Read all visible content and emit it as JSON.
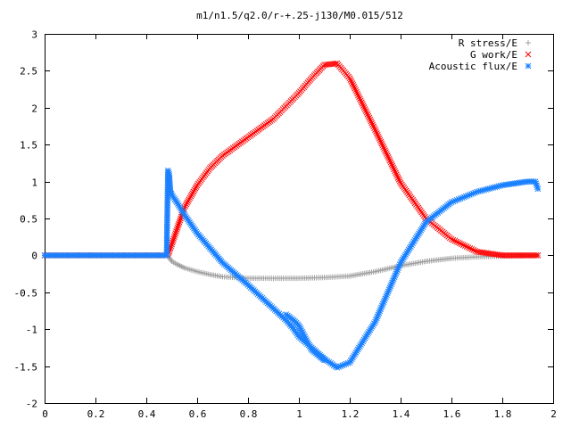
{
  "chart_data": {
    "type": "scatter",
    "title": "m1/n1.5/q2.0/r-+.25-j130/M0.015/512",
    "xlabel": "",
    "ylabel": "",
    "xlim": [
      0,
      2
    ],
    "ylim": [
      -2,
      3
    ],
    "x_ticks": [
      "0",
      "0.2",
      "0.4",
      "0.6",
      "0.8",
      "1",
      "1.2",
      "1.4",
      "1.6",
      "1.8",
      "2"
    ],
    "y_ticks": [
      "3",
      "2.5",
      "2",
      "1.5",
      "1",
      "0.5",
      "0",
      "-0.5",
      "-1",
      "-1.5",
      "-2"
    ],
    "grid": false,
    "legend_position": "top-right",
    "series": [
      {
        "name": "R stress/E",
        "marker": "plus",
        "color": "#a0a0a0",
        "points": [
          [
            0.0,
            0.0
          ],
          [
            0.48,
            0.0
          ],
          [
            0.49,
            -0.03
          ],
          [
            0.5,
            -0.08
          ],
          [
            0.52,
            -0.12
          ],
          [
            0.55,
            -0.17
          ],
          [
            0.6,
            -0.22
          ],
          [
            0.65,
            -0.26
          ],
          [
            0.7,
            -0.29
          ],
          [
            0.8,
            -0.31
          ],
          [
            0.9,
            -0.31
          ],
          [
            1.0,
            -0.31
          ],
          [
            1.1,
            -0.3
          ],
          [
            1.2,
            -0.28
          ],
          [
            1.3,
            -0.22
          ],
          [
            1.4,
            -0.14
          ],
          [
            1.5,
            -0.08
          ],
          [
            1.6,
            -0.04
          ],
          [
            1.7,
            -0.02
          ],
          [
            1.8,
            -0.01
          ],
          [
            1.94,
            0.0
          ]
        ]
      },
      {
        "name": "G work/E",
        "marker": "cross",
        "color": "#ff0000",
        "points": [
          [
            0.0,
            0.0
          ],
          [
            0.48,
            0.0
          ],
          [
            0.49,
            0.05
          ],
          [
            0.5,
            0.15
          ],
          [
            0.52,
            0.35
          ],
          [
            0.55,
            0.65
          ],
          [
            0.6,
            0.95
          ],
          [
            0.65,
            1.18
          ],
          [
            0.7,
            1.35
          ],
          [
            0.8,
            1.6
          ],
          [
            0.9,
            1.85
          ],
          [
            1.0,
            2.2
          ],
          [
            1.05,
            2.4
          ],
          [
            1.1,
            2.58
          ],
          [
            1.15,
            2.6
          ],
          [
            1.2,
            2.4
          ],
          [
            1.3,
            1.7
          ],
          [
            1.4,
            0.98
          ],
          [
            1.5,
            0.5
          ],
          [
            1.6,
            0.22
          ],
          [
            1.7,
            0.05
          ],
          [
            1.8,
            0.0
          ],
          [
            1.94,
            0.0
          ]
        ]
      },
      {
        "name": "Acoustic flux/E",
        "marker": "star",
        "color": "#1a80ff",
        "points": [
          [
            0.0,
            0.0
          ],
          [
            0.48,
            0.0
          ],
          [
            0.485,
            1.15
          ],
          [
            0.49,
            1.1
          ],
          [
            0.495,
            0.85
          ],
          [
            0.5,
            0.82
          ],
          [
            0.52,
            0.72
          ],
          [
            0.55,
            0.55
          ],
          [
            0.6,
            0.3
          ],
          [
            0.65,
            0.1
          ],
          [
            0.7,
            -0.1
          ],
          [
            0.8,
            -0.4
          ],
          [
            0.9,
            -0.72
          ],
          [
            0.95,
            -0.88
          ],
          [
            0.98,
            -1.0
          ],
          [
            1.0,
            -1.1
          ],
          [
            1.05,
            -1.25
          ],
          [
            1.1,
            -1.4
          ],
          [
            1.15,
            -1.52
          ],
          [
            1.2,
            -1.45
          ],
          [
            1.3,
            -0.9
          ],
          [
            1.4,
            -0.1
          ],
          [
            1.5,
            0.45
          ],
          [
            1.6,
            0.72
          ],
          [
            1.7,
            0.86
          ],
          [
            1.8,
            0.95
          ],
          [
            1.9,
            1.0
          ],
          [
            1.93,
            1.0
          ],
          [
            1.94,
            0.9
          ]
        ]
      },
      {
        "name": "Acoustic flux/E",
        "marker": "star",
        "color": "#1a80ff",
        "points": [
          [
            0.95,
            -0.8
          ],
          [
            0.98,
            -0.88
          ],
          [
            1.0,
            -0.95
          ],
          [
            1.02,
            -1.08
          ],
          [
            1.05,
            -1.28
          ],
          [
            1.1,
            -1.42
          ]
        ]
      }
    ]
  }
}
